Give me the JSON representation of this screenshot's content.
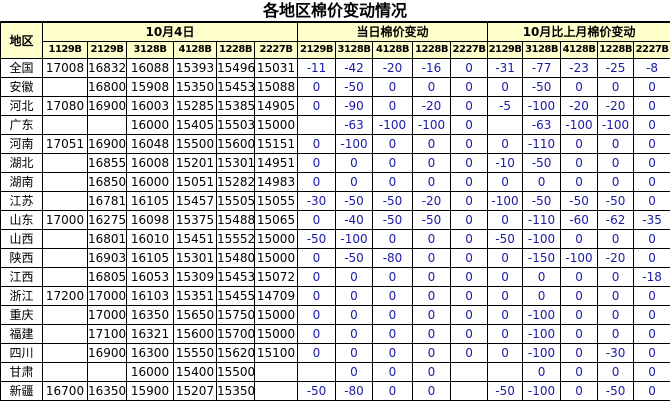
{
  "title": "各地区棉价变动情况",
  "header": {
    "region": "地区",
    "groups": [
      "10月4日",
      "当日棉价变动",
      "10月比上月棉价变动"
    ],
    "price_codes": [
      "1129B",
      "2129B",
      "3128B",
      "4128B",
      "1228B",
      "2227B"
    ],
    "change_codes": [
      "2129B",
      "3128B",
      "4128B",
      "1228B",
      "2227B"
    ]
  },
  "colors": {
    "header_bg": "#ffffcc",
    "change_text": "#1a1aa6"
  },
  "rows": [
    {
      "region": "全国",
      "prices": [
        "17008",
        "16832",
        "16088",
        "15393",
        "15496",
        "15031"
      ],
      "daily": [
        "-11",
        "-42",
        "-20",
        "-16",
        "0"
      ],
      "monthly": [
        "-31",
        "-77",
        "-23",
        "-25",
        "-8"
      ]
    },
    {
      "region": "安徽",
      "prices": [
        "",
        "16800",
        "15908",
        "15350",
        "15453",
        "15088"
      ],
      "daily": [
        "0",
        "-50",
        "0",
        "0",
        "0"
      ],
      "monthly": [
        "0",
        "-50",
        "0",
        "0",
        "0"
      ]
    },
    {
      "region": "河北",
      "prices": [
        "17080",
        "16900",
        "16003",
        "15285",
        "15385",
        "14905"
      ],
      "daily": [
        "0",
        "-90",
        "0",
        "-20",
        "0"
      ],
      "monthly": [
        "-5",
        "-100",
        "-20",
        "-20",
        "0"
      ]
    },
    {
      "region": "广东",
      "prices": [
        "",
        "",
        "16000",
        "15405",
        "15503",
        "15000"
      ],
      "daily": [
        "",
        "-63",
        "-100",
        "-100",
        "0"
      ],
      "monthly": [
        "",
        "-63",
        "-100",
        "-100",
        "0"
      ]
    },
    {
      "region": "河南",
      "prices": [
        "17051",
        "16900",
        "16048",
        "15500",
        "15600",
        "15151"
      ],
      "daily": [
        "0",
        "-100",
        "0",
        "0",
        "0"
      ],
      "monthly": [
        "0",
        "-110",
        "0",
        "0",
        "0"
      ]
    },
    {
      "region": "湖北",
      "prices": [
        "",
        "16855",
        "16008",
        "15201",
        "15301",
        "14951"
      ],
      "daily": [
        "0",
        "0",
        "0",
        "0",
        "0"
      ],
      "monthly": [
        "-10",
        "-50",
        "0",
        "0",
        "0"
      ]
    },
    {
      "region": "湖南",
      "prices": [
        "",
        "16850",
        "16000",
        "15051",
        "15282",
        "14983"
      ],
      "daily": [
        "0",
        "0",
        "0",
        "0",
        "0"
      ],
      "monthly": [
        "0",
        "0",
        "0",
        "0",
        "0"
      ]
    },
    {
      "region": "江苏",
      "prices": [
        "",
        "16781",
        "16105",
        "15457",
        "15505",
        "15055"
      ],
      "daily": [
        "-30",
        "-50",
        "-50",
        "-20",
        "0"
      ],
      "monthly": [
        "-100",
        "-50",
        "-50",
        "-50",
        "0"
      ]
    },
    {
      "region": "山东",
      "prices": [
        "17000",
        "16275",
        "16098",
        "15375",
        "15488",
        "15065"
      ],
      "daily": [
        "0",
        "-40",
        "-50",
        "-50",
        "0"
      ],
      "monthly": [
        "0",
        "-110",
        "-60",
        "-62",
        "-35"
      ]
    },
    {
      "region": "山西",
      "prices": [
        "",
        "16801",
        "16010",
        "15451",
        "15552",
        "15000"
      ],
      "daily": [
        "-50",
        "-100",
        "0",
        "0",
        "0"
      ],
      "monthly": [
        "-50",
        "-100",
        "0",
        "0",
        "0"
      ]
    },
    {
      "region": "陕西",
      "prices": [
        "",
        "16903",
        "16105",
        "15301",
        "15480",
        "15000"
      ],
      "daily": [
        "0",
        "-50",
        "-80",
        "0",
        "0"
      ],
      "monthly": [
        "0",
        "-150",
        "-100",
        "-20",
        "0"
      ]
    },
    {
      "region": "江西",
      "prices": [
        "",
        "16805",
        "16053",
        "15309",
        "15453",
        "15072"
      ],
      "daily": [
        "0",
        "0",
        "0",
        "0",
        "0"
      ],
      "monthly": [
        "0",
        "0",
        "0",
        "0",
        "-18"
      ]
    },
    {
      "region": "浙江",
      "prices": [
        "17200",
        "17000",
        "16103",
        "15351",
        "15455",
        "14709"
      ],
      "daily": [
        "0",
        "0",
        "0",
        "0",
        "0"
      ],
      "monthly": [
        "0",
        "0",
        "0",
        "0",
        "0"
      ]
    },
    {
      "region": "重庆",
      "prices": [
        "",
        "17000",
        "16350",
        "15650",
        "15750",
        "15000"
      ],
      "daily": [
        "0",
        "0",
        "0",
        "0",
        "0"
      ],
      "monthly": [
        "0",
        "-100",
        "0",
        "0",
        "0"
      ]
    },
    {
      "region": "福建",
      "prices": [
        "",
        "17100",
        "16321",
        "15600",
        "15700",
        "15000"
      ],
      "daily": [
        "0",
        "0",
        "0",
        "0",
        "0"
      ],
      "monthly": [
        "0",
        "-100",
        "0",
        "0",
        "0"
      ]
    },
    {
      "region": "四川",
      "prices": [
        "",
        "16900",
        "16300",
        "15550",
        "15620",
        "15100"
      ],
      "daily": [
        "0",
        "0",
        "0",
        "0",
        "0"
      ],
      "monthly": [
        "0",
        "-100",
        "0",
        "-30",
        "0"
      ]
    },
    {
      "region": "甘肃",
      "prices": [
        "",
        "",
        "16000",
        "15400",
        "15500",
        ""
      ],
      "daily": [
        "",
        "0",
        "0",
        "0",
        ""
      ],
      "monthly": [
        "",
        "0",
        "0",
        "0",
        "0"
      ]
    },
    {
      "region": "新疆",
      "prices": [
        "16700",
        "16350",
        "15900",
        "15207",
        "15350",
        ""
      ],
      "daily": [
        "-50",
        "-80",
        "0",
        "0",
        ""
      ],
      "monthly": [
        "-50",
        "-100",
        "0",
        "-50",
        "0"
      ]
    }
  ]
}
